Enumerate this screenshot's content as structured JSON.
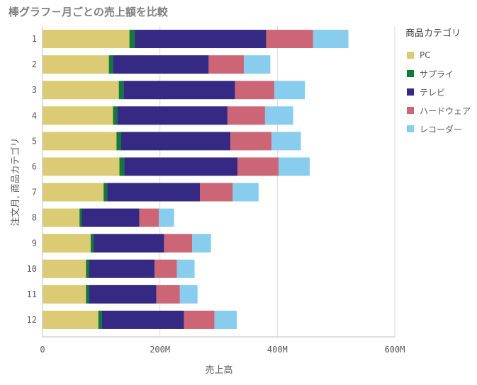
{
  "chart_data": {
    "type": "bar",
    "orientation": "horizontal",
    "stacked": true,
    "title": "棒グラフ－月ごとの売上額を比較",
    "xlabel": "売上高",
    "ylabel": "注文月, 商品カテゴリ",
    "xlim": [
      0,
      600000000
    ],
    "x_ticks": [
      {
        "value": 0,
        "label": "0"
      },
      {
        "value": 200000000,
        "label": "200M"
      },
      {
        "value": 400000000,
        "label": "400M"
      },
      {
        "value": 600000000,
        "label": "600M"
      }
    ],
    "grid": true,
    "legend_title": "商品カテゴリ",
    "legend_position": "right",
    "categories": [
      "1",
      "2",
      "3",
      "4",
      "5",
      "6",
      "7",
      "8",
      "9",
      "10",
      "11",
      "12"
    ],
    "series": [
      {
        "name": "PC",
        "color": "#dccb75",
        "values": [
          148000000,
          113000000,
          130000000,
          120000000,
          126000000,
          131000000,
          104000000,
          63000000,
          82000000,
          74000000,
          74000000,
          95000000
        ]
      },
      {
        "name": "サプライ",
        "color": "#117a39",
        "values": [
          9000000,
          7000000,
          8000000,
          7000000,
          8000000,
          8000000,
          6000000,
          4000000,
          5000000,
          5000000,
          5000000,
          6000000
        ]
      },
      {
        "name": "テレビ",
        "color": "#352984",
        "values": [
          224000000,
          163000000,
          190000000,
          188000000,
          186000000,
          193000000,
          158000000,
          98000000,
          120000000,
          112000000,
          115000000,
          140000000
        ]
      },
      {
        "name": "ハードウェア",
        "color": "#cc6677",
        "values": [
          80000000,
          60000000,
          67000000,
          64000000,
          70000000,
          70000000,
          56000000,
          33000000,
          48000000,
          38000000,
          40000000,
          52000000
        ]
      },
      {
        "name": "レコーダー",
        "color": "#88ccee",
        "values": [
          60000000,
          45000000,
          52000000,
          48000000,
          50000000,
          53000000,
          44000000,
          26000000,
          32000000,
          30000000,
          30000000,
          38000000
        ]
      }
    ]
  }
}
